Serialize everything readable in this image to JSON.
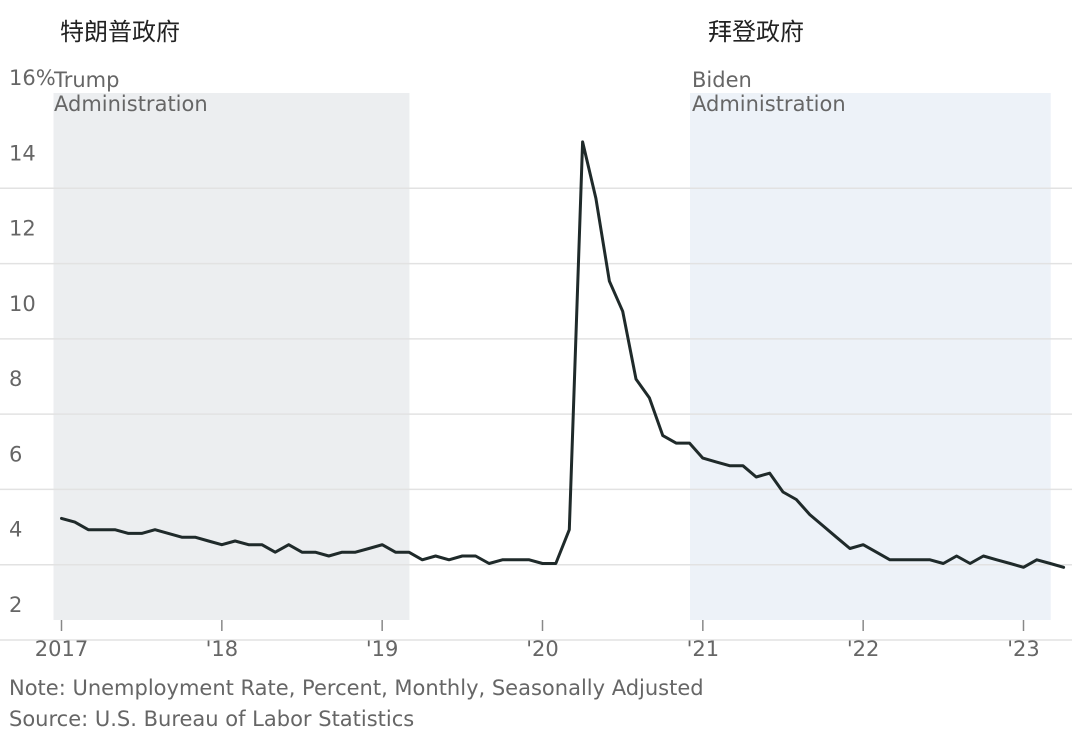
{
  "cn_titles": {
    "trump": "特朗普政府",
    "biden": "拜登政府"
  },
  "chart_data": {
    "type": "line",
    "title": "",
    "xlabel": "",
    "ylabel": "",
    "ylim": [
      2,
      16
    ],
    "xlim": [
      2016.95,
      2023.33
    ],
    "y_ticks": [
      {
        "value": 2,
        "label": "2"
      },
      {
        "value": 4,
        "label": "4"
      },
      {
        "value": 6,
        "label": "6"
      },
      {
        "value": 8,
        "label": "8"
      },
      {
        "value": 10,
        "label": "10"
      },
      {
        "value": 12,
        "label": "12"
      },
      {
        "value": 14,
        "label": "14"
      },
      {
        "value": 16,
        "label": "16%"
      }
    ],
    "x_ticks": [
      {
        "value": 2017,
        "label": "2017"
      },
      {
        "value": 2018,
        "label": "'18"
      },
      {
        "value": 2019,
        "label": "'19"
      },
      {
        "value": 2020,
        "label": "'20"
      },
      {
        "value": 2021,
        "label": "'21"
      },
      {
        "value": 2022,
        "label": "'22"
      },
      {
        "value": 2023,
        "label": "'23"
      }
    ],
    "grid": true,
    "colors": {
      "line": "#1f2a2a",
      "trump_band": "#eceef0",
      "biden_band": "#edf2f8",
      "grid": "#e2e2e2"
    },
    "shaded_periods": [
      {
        "key": "trump",
        "start": 2016.95,
        "end": 2019.17,
        "label_lines": [
          "Trump",
          "Administration"
        ]
      },
      {
        "key": "biden",
        "start": 2020.92,
        "end": 2023.17,
        "label_lines": [
          "Biden",
          "Administration"
        ]
      }
    ],
    "series": [
      {
        "x": [
          2017.0,
          2017.083,
          2017.167,
          2017.25,
          2017.333,
          2017.417,
          2017.5,
          2017.583,
          2017.667,
          2017.75,
          2017.833,
          2017.917,
          2018.0,
          2018.083,
          2018.167,
          2018.25,
          2018.333,
          2018.417,
          2018.5,
          2018.583,
          2018.667,
          2018.75,
          2018.833,
          2018.917,
          2019.0,
          2019.083,
          2019.167,
          2019.25,
          2019.333,
          2019.417,
          2019.5,
          2019.583,
          2019.667,
          2019.75,
          2019.833,
          2019.917,
          2020.0,
          2020.083,
          2020.167,
          2020.25,
          2020.333,
          2020.417,
          2020.5,
          2020.583,
          2020.667,
          2020.75,
          2020.833,
          2020.917,
          2021.0,
          2021.083,
          2021.167,
          2021.25,
          2021.333,
          2021.417,
          2021.5,
          2021.583,
          2021.667,
          2021.75,
          2021.833,
          2021.917,
          2022.0,
          2022.083,
          2022.167,
          2022.25,
          2022.333,
          2022.417,
          2022.5,
          2022.583,
          2022.667,
          2022.75,
          2022.833,
          2022.917,
          2023.0,
          2023.083,
          2023.167,
          2023.25
        ],
        "values": [
          4.7,
          4.6,
          4.4,
          4.4,
          4.4,
          4.3,
          4.3,
          4.4,
          4.3,
          4.2,
          4.2,
          4.1,
          4.0,
          4.1,
          4.0,
          4.0,
          3.8,
          4.0,
          3.8,
          3.8,
          3.7,
          3.8,
          3.8,
          3.9,
          4.0,
          3.8,
          3.8,
          3.6,
          3.7,
          3.6,
          3.7,
          3.7,
          3.5,
          3.6,
          3.6,
          3.6,
          3.5,
          3.5,
          4.4,
          14.7,
          13.2,
          11.0,
          10.2,
          8.4,
          7.9,
          6.9,
          6.7,
          6.7,
          6.3,
          6.2,
          6.1,
          6.1,
          5.8,
          5.9,
          5.4,
          5.2,
          4.8,
          4.5,
          4.2,
          3.9,
          4.0,
          3.8,
          3.6,
          3.6,
          3.6,
          3.6,
          3.5,
          3.7,
          3.5,
          3.7,
          3.6,
          3.5,
          3.4,
          3.6,
          3.5,
          3.4
        ]
      }
    ]
  },
  "notes": {
    "note": "Note: Unemployment Rate, Percent, Monthly, Seasonally Adjusted",
    "source": "Source: U.S. Bureau of Labor Statistics"
  }
}
